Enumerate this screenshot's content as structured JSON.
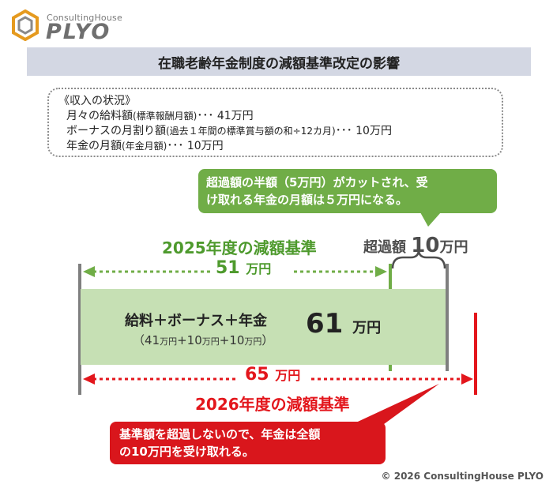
{
  "logo": {
    "sub": "ConsultingHouse",
    "main": "PLYO"
  },
  "title": "在職老齢年金制度の減額基準改定の影響",
  "income": {
    "heading": "《収入の状況》",
    "salary_main": "月々の給料額",
    "salary_note": "(標準報酬月額)",
    "salary_value": "･･･ 41万円",
    "bonus_main": "ボーナスの月割り額",
    "bonus_note": "(過去１年間の標準賞与額の和÷12カ月)",
    "bonus_value": "･･･ 10万円",
    "pension_main": "年金の月額",
    "pension_note": "(年金月額)",
    "pension_value": "･･･ 10万円"
  },
  "green_callout": {
    "line1": "超過額の半額（5万円）がカットされ、受",
    "line2": "け取れる年金の月額は５万円になる。"
  },
  "threshold_2025": {
    "label": "2025年度の減額基準",
    "value": "51",
    "unit": "万円"
  },
  "excess": {
    "label": "超過額",
    "value": "10",
    "unit": "万円"
  },
  "bar": {
    "label": "給料＋ボーナス＋年金",
    "sub_open": "（41",
    "sub_u1": "万円",
    "sub_mid1": "+10",
    "sub_u2": "万円",
    "sub_mid2": "+10",
    "sub_u3": "万円",
    "sub_close": "）",
    "value": "61",
    "unit": "万円"
  },
  "threshold_2026": {
    "label": "2026年度の減額基準",
    "value": "65",
    "unit": "万円"
  },
  "red_callout": {
    "line1": "基準額を超過しないので、年金は全額",
    "line2": "の10万円を受け取れる。"
  },
  "copyright": "© 2026 ConsultingHouse PLYO",
  "colors": {
    "green": "#70ad47",
    "green_text": "#4e9a2d",
    "bar_fill": "#c6e0b4",
    "red": "#e3161c",
    "title_bg": "#d3d7e3",
    "gray": "#7f7f7f"
  }
}
